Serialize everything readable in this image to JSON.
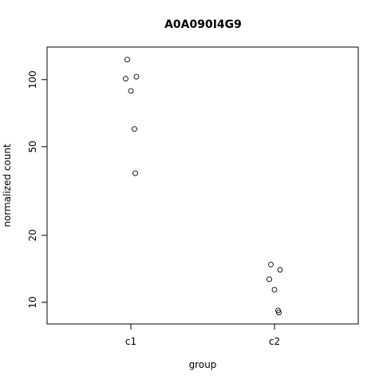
{
  "chart_data": {
    "type": "scatter",
    "title": "A0A090I4G9",
    "xlabel": "group",
    "ylabel": "normalized count",
    "categories": [
      "c1",
      "c2"
    ],
    "y_scale": "log",
    "ylim": [
      8.0,
      140
    ],
    "y_ticks": [
      10,
      20,
      50,
      100
    ],
    "grid": false,
    "series": [
      {
        "category": "c1",
        "points": [
          {
            "x": "c1",
            "y": 123
          },
          {
            "x": "c1",
            "y": 103
          },
          {
            "x": "c1",
            "y": 101
          },
          {
            "x": "c1",
            "y": 89
          },
          {
            "x": "c1",
            "y": 60
          },
          {
            "x": "c1",
            "y": 38
          }
        ]
      },
      {
        "category": "c2",
        "points": [
          {
            "x": "c2",
            "y": 14.8
          },
          {
            "x": "c2",
            "y": 14.0
          },
          {
            "x": "c2",
            "y": 12.7
          },
          {
            "x": "c2",
            "y": 11.4
          },
          {
            "x": "c2",
            "y": 9.2
          },
          {
            "x": "c2",
            "y": 9.0
          }
        ]
      }
    ]
  }
}
